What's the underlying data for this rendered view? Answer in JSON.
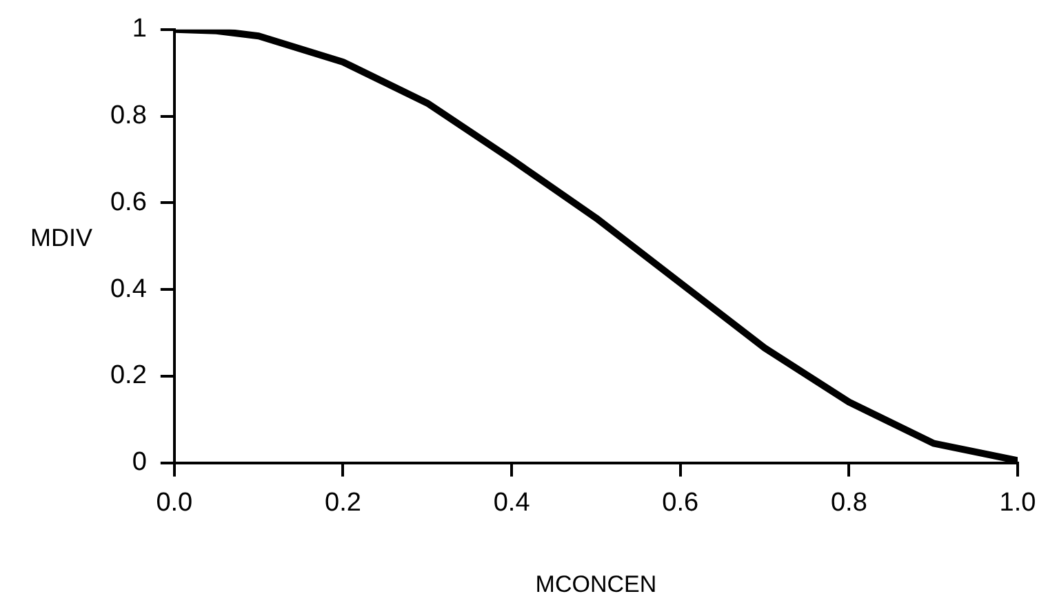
{
  "chart_data": {
    "type": "line",
    "xlabel": "MCONCEN",
    "ylabel": "MDIV",
    "x": [
      0,
      0.05,
      0.1,
      0.2,
      0.3,
      0.4,
      0.5,
      0.6,
      0.7,
      0.8,
      0.9,
      1.0
    ],
    "series": [
      {
        "color": "#000000",
        "values": [
          1,
          0.997,
          0.985,
          0.925,
          0.83,
          0.7,
          0.565,
          0.415,
          0.265,
          0.14,
          0.045,
          0.005
        ]
      }
    ],
    "xlim": [
      0,
      1
    ],
    "ylim": [
      0,
      1
    ],
    "xticks": [
      {
        "value": 0,
        "label": "0.0"
      },
      {
        "value": 0.2,
        "label": "0.2"
      },
      {
        "value": 0.4,
        "label": "0.4"
      },
      {
        "value": 0.6,
        "label": "0.6"
      },
      {
        "value": 0.8,
        "label": "0.8"
      },
      {
        "value": 1,
        "label": "1.0"
      }
    ],
    "yticks": [
      0,
      0.2,
      0.4,
      0.6,
      0.8,
      1
    ],
    "grid": false,
    "legend": false,
    "marker": "none",
    "line_style": "solid"
  }
}
